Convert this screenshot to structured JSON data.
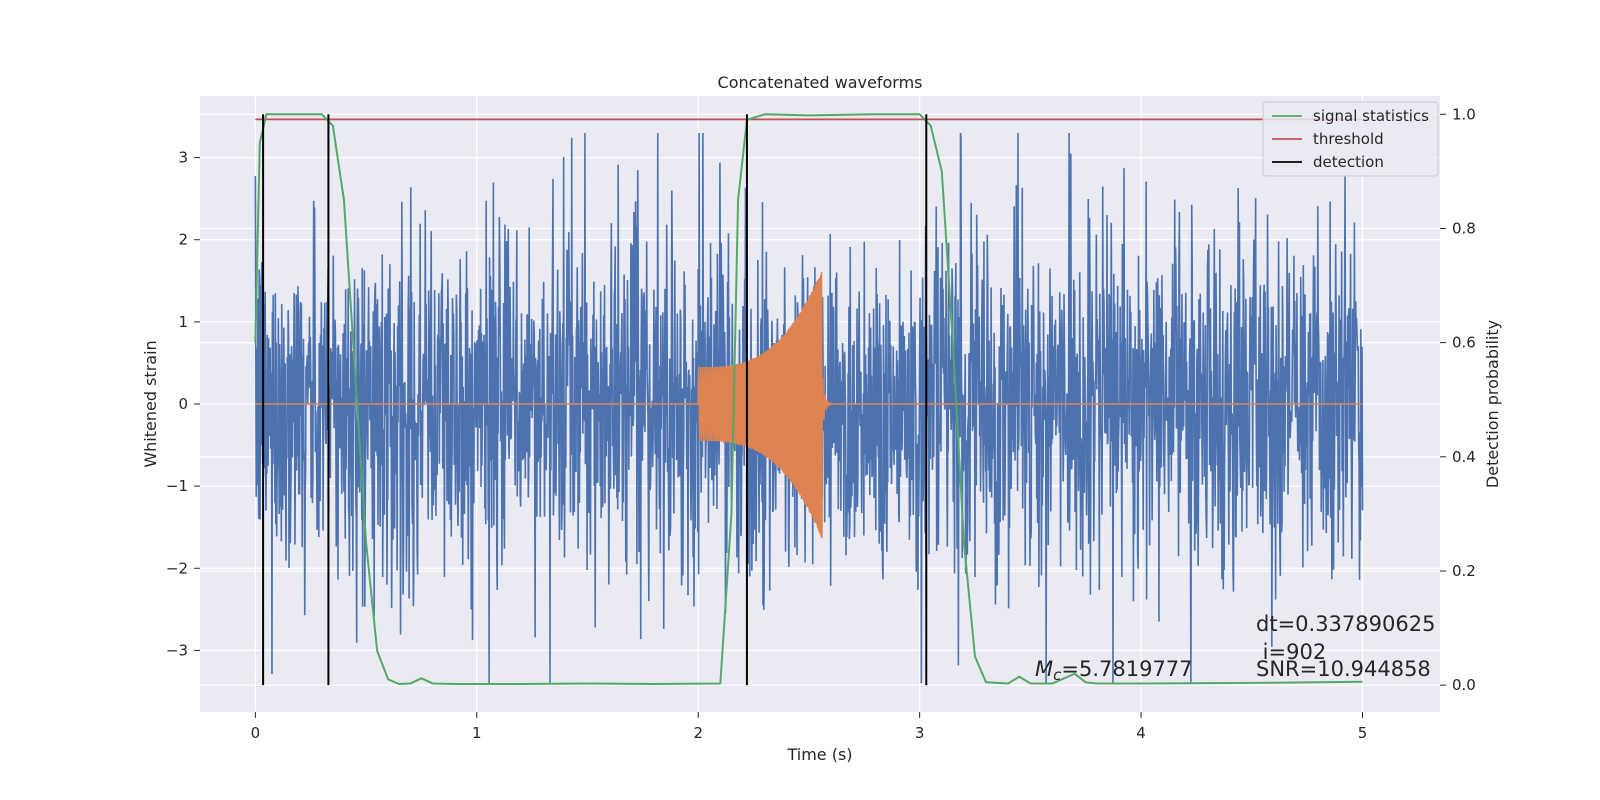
{
  "chart_data": {
    "type": "line",
    "title": "Concatenated waveforms",
    "xlabel": "Time (s)",
    "ylabel": "Whitened strain",
    "y2label": "Detection probability",
    "xlim": [
      -0.25,
      5.35
    ],
    "ylim": [
      -3.75,
      3.75
    ],
    "y2lim": [
      -0.047,
      1.032
    ],
    "xticks": [
      0,
      1,
      2,
      3,
      4,
      5
    ],
    "yticks": [
      -3,
      -2,
      -1,
      0,
      1,
      2,
      3
    ],
    "y2ticks": [
      0.0,
      0.2,
      0.4,
      0.6,
      0.8,
      1.0
    ],
    "grid": true,
    "legend_position": "top-right",
    "colors": {
      "noise": "#4c72b0",
      "signal": "#dd8452",
      "statistics": "#55a868",
      "threshold": "#c44e52",
      "detection": "#000000",
      "plot_bg": "#eaeaf2",
      "grid": "#ffffff"
    },
    "series": [
      {
        "name": "signal statistics",
        "axis": "right",
        "x": [
          0.0,
          0.02,
          0.05,
          0.1,
          0.2,
          0.3,
          0.35,
          0.4,
          0.45,
          0.5,
          0.55,
          0.6,
          0.65,
          0.7,
          0.75,
          0.8,
          0.9,
          1.2,
          1.5,
          1.8,
          2.1,
          2.15,
          2.18,
          2.22,
          2.3,
          2.5,
          2.8,
          3.0,
          3.05,
          3.1,
          3.15,
          3.2,
          3.25,
          3.3,
          3.4,
          3.45,
          3.5,
          3.6,
          3.7,
          3.75,
          3.8,
          4.0,
          4.5,
          4.8,
          5.0
        ],
        "y": [
          0.6,
          0.95,
          1.0,
          1.0,
          1.0,
          1.0,
          0.98,
          0.85,
          0.55,
          0.25,
          0.06,
          0.01,
          0.002,
          0.003,
          0.012,
          0.003,
          0.002,
          0.002,
          0.003,
          0.002,
          0.003,
          0.3,
          0.85,
          0.99,
          1.0,
          0.998,
          1.0,
          1.0,
          0.98,
          0.9,
          0.6,
          0.25,
          0.05,
          0.005,
          0.003,
          0.015,
          0.003,
          0.003,
          0.02,
          0.005,
          0.003,
          0.003,
          0.004,
          0.005,
          0.006
        ]
      },
      {
        "name": "threshold",
        "axis": "right",
        "x": [
          0.0,
          5.0
        ],
        "y": [
          0.991,
          0.991
        ]
      },
      {
        "name": "detection",
        "axis": "right",
        "x_positions": [
          0.035,
          0.33,
          2.22,
          3.03
        ],
        "y_range": [
          0.0,
          1.0
        ]
      },
      {
        "name": "",
        "role": "whitened noise strain",
        "axis": "left",
        "x_range": [
          0.0,
          5.0
        ],
        "typical_amplitude": 1.0,
        "peak_amplitude": 3.3
      },
      {
        "name": "",
        "role": "injected chirp waveform",
        "axis": "left",
        "chirp_start": 2.0,
        "chirp_end": 2.56,
        "start_amplitude": 0.45,
        "peak_amplitude": 1.65,
        "ringdown_end": 2.62
      }
    ],
    "annotations": {
      "mc": "=5.7819777",
      "mc_symbol": "M",
      "mc_subscript": "c",
      "dt": "dt=0.337890625",
      "i": " i=902",
      "snr": "SNR=10.944858"
    }
  }
}
